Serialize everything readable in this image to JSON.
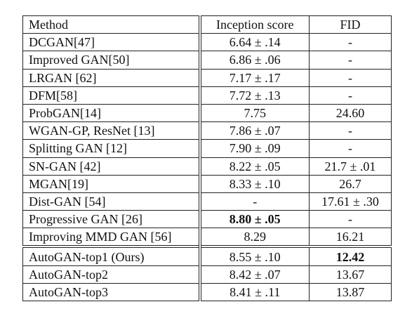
{
  "table": {
    "headers": {
      "method": "Method",
      "inception": "Inception score",
      "fid": "FID"
    },
    "rows": [
      {
        "method": "DCGAN[47]",
        "inception": "6.64 ± .14",
        "fid": "-"
      },
      {
        "method": "Improved GAN[50]",
        "inception": "6.86 ± .06",
        "fid": "-"
      },
      {
        "method": "LRGAN [62]",
        "inception": "7.17 ± .17",
        "fid": "-"
      },
      {
        "method": "DFM[58]",
        "inception": "7.72 ± .13",
        "fid": "-"
      },
      {
        "method": "ProbGAN[14]",
        "inception": "7.75",
        "fid": "24.60"
      },
      {
        "method": "WGAN-GP, ResNet [13]",
        "inception": "7.86 ± .07",
        "fid": "-"
      },
      {
        "method": "Splitting GAN [12]",
        "inception": "7.90 ± .09",
        "fid": "-"
      },
      {
        "method": "SN-GAN [42]",
        "inception": "8.22 ± .05",
        "fid": "21.7 ± .01"
      },
      {
        "method": "MGAN[19]",
        "inception": "8.33 ± .10",
        "fid": "26.7"
      },
      {
        "method": "Dist-GAN [54]",
        "inception": "-",
        "fid": "17.61 ± .30"
      },
      {
        "method": "Progressive GAN [26]",
        "inception": "8.80 ± .05",
        "fid": "-"
      },
      {
        "method": "Improving MMD GAN [56]",
        "inception": "8.29",
        "fid": "16.21"
      },
      {
        "method": "AutoGAN-top1 (Ours)",
        "inception": "8.55 ± .10",
        "fid": "12.42"
      },
      {
        "method": "AutoGAN-top2",
        "inception": "8.42 ± .07",
        "fid": "13.67"
      },
      {
        "method": "AutoGAN-top3",
        "inception": "8.41 ± .11",
        "fid": "13.87"
      }
    ]
  }
}
